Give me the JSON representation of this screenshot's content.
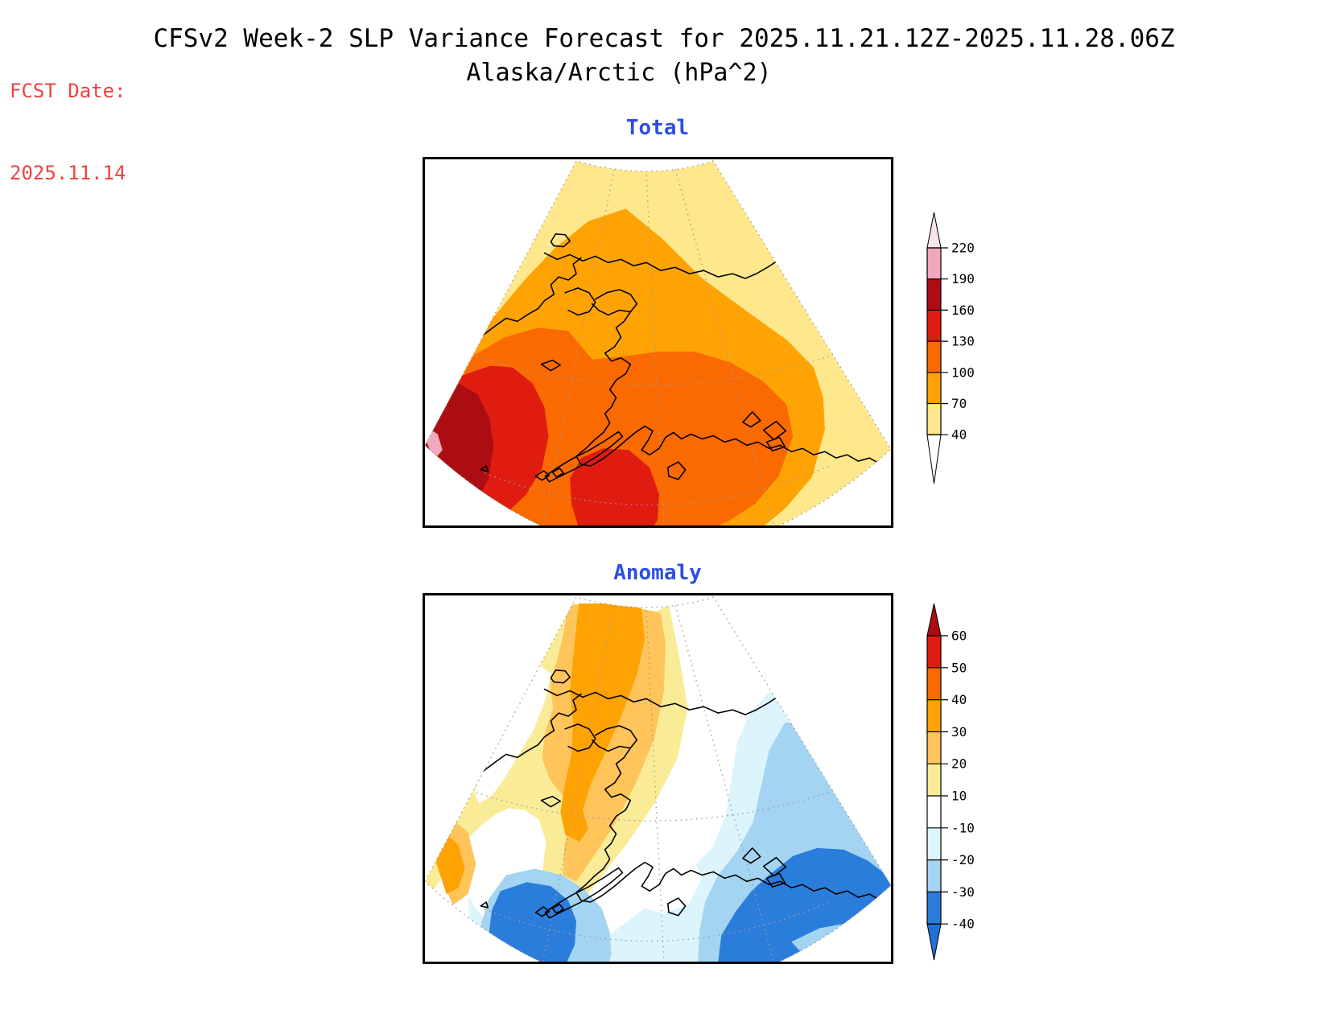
{
  "header": {
    "fcst_label": "FCST Date:",
    "fcst_date": "2025.11.14",
    "title_line1": "CFSv2 Week-2 SLP Variance Forecast for 2025.11.21.12Z-2025.11.28.06Z",
    "title_line2": "Alaska/Arctic (hPa^2)"
  },
  "panels": [
    {
      "id": "total",
      "title": "Total"
    },
    {
      "id": "anomaly",
      "title": "Anomaly"
    }
  ],
  "accents": {
    "panel_title_color": "#2D4FE0",
    "fcst_color": "#EF4140",
    "title_color": "#000000"
  },
  "palette": {
    "yellow": "#FFE78C",
    "orange": "#FFA305",
    "orange_red": "#FA6A00",
    "red": "#E01B10",
    "dark_red": "#AB0D13",
    "pink": "#F2A7BD",
    "pale_pink": "#F8E4EC",
    "pale_yellow": "#FAEC96",
    "amber": "#FFC45A",
    "white": "#FFFFFF",
    "pale_blue": "#DCF4FB",
    "light_blue": "#A3D4F1",
    "mid_blue": "#2B7DDB",
    "deep_blue": "#2171D4"
  },
  "colorbars": {
    "total": {
      "tick_labels": [
        "220",
        "190",
        "160",
        "130",
        "100",
        "70",
        "40"
      ],
      "segment_color_keys": [
        "pink",
        "dark_red",
        "red",
        "orange_red",
        "orange",
        "yellow"
      ],
      "above_top_key": "pale_pink",
      "below_bottom_key": "white"
    },
    "anomaly": {
      "tick_labels": [
        "60",
        "50",
        "40",
        "30",
        "20",
        "10",
        "-10",
        "-20",
        "-30",
        "-40"
      ],
      "segment_color_keys": [
        "red",
        "orange_red",
        "orange",
        "amber",
        "pale_yellow",
        "white",
        "pale_blue",
        "light_blue",
        "mid_blue"
      ],
      "above_top_key": "dark_red",
      "below_bottom_key": "deep_blue"
    }
  },
  "chart_data": {
    "type": "heatmap",
    "subtype": "filled-contour-map-pair",
    "title": "CFSv2 Week-2 SLP Variance Forecast for 2025.11.21.12Z-2025.11.28.06Z",
    "region": "Alaska/Arctic",
    "units": "hPa^2",
    "forecast_initialization": "2025.11.14",
    "valid_period": "2025.11.21.12Z-2025.11.28.06Z",
    "projection": "polar-stereographic sector (fan-shaped domain) over Alaska, the Bering Sea and the Arctic coast",
    "panels": [
      {
        "name": "Total",
        "contour_levels": [
          40,
          70,
          100,
          130,
          160,
          190,
          220
        ],
        "band_ranges": [
          "40-70",
          "70-100",
          "100-130",
          "130-160",
          "160-190",
          "190-220",
          ">220"
        ],
        "band_colors": [
          "#FFE78C",
          "#FFA305",
          "#FA6A00",
          "#E01B10",
          "#AB0D13",
          "#F2A7BD",
          "#F8E4EC"
        ],
        "colorbar_position": "right",
        "pattern_summary": "40-70 hPa^2 along the Arctic (top) edge and the southeastern Gulf edge; 70-100 over northern and interior Alaska; broad 100-130 over the Bering Sea and southern Alaska; 130-160 in the southwest; maximum >160 in the far southwestern (western Bering) corner with a tiny >190 sliver on the boundary; secondary 130-160 core south of the Alaska Peninsula."
      },
      {
        "name": "Anomaly",
        "contour_levels": [
          -40,
          -30,
          -20,
          -10,
          10,
          20,
          30,
          40,
          50,
          60
        ],
        "band_ranges": [
          "<-40",
          "-40--30",
          "-30--20",
          "-20--10",
          "-10-10",
          "10-20",
          "20-30",
          "30-40",
          "40-50",
          "50-60",
          ">60"
        ],
        "band_colors": [
          "#2171D4",
          "#2B7DDB",
          "#A3D4F1",
          "#DCF4FB",
          "#FFFFFF",
          "#FAEC96",
          "#FFC45A",
          "#FFA305",
          "#FA6A00",
          "#E01B10",
          "#AB0D13"
        ],
        "colorbar_position": "right",
        "pattern_summary": "Positive anomalies (+10 to +40) in a band from the Chukchi/East Siberian Arctic south across the Bering Strait and western Alaska, plus a small positive streak on the far southwestern edge; near zero over the central interior; negative anomalies over the Gulf of Alaska and southern Bering Sea with minima of -30 to -40 south of the Alaska Peninsula and over the southeast Alaska panhandle."
      }
    ],
    "layout": {
      "panel_titles": [
        "Total",
        "Anomaly"
      ],
      "panel_title_color": "#2D4FE0",
      "grid": "dotted gray lat/lon graticule",
      "coastlines": "black outlines, land not filled"
    }
  }
}
